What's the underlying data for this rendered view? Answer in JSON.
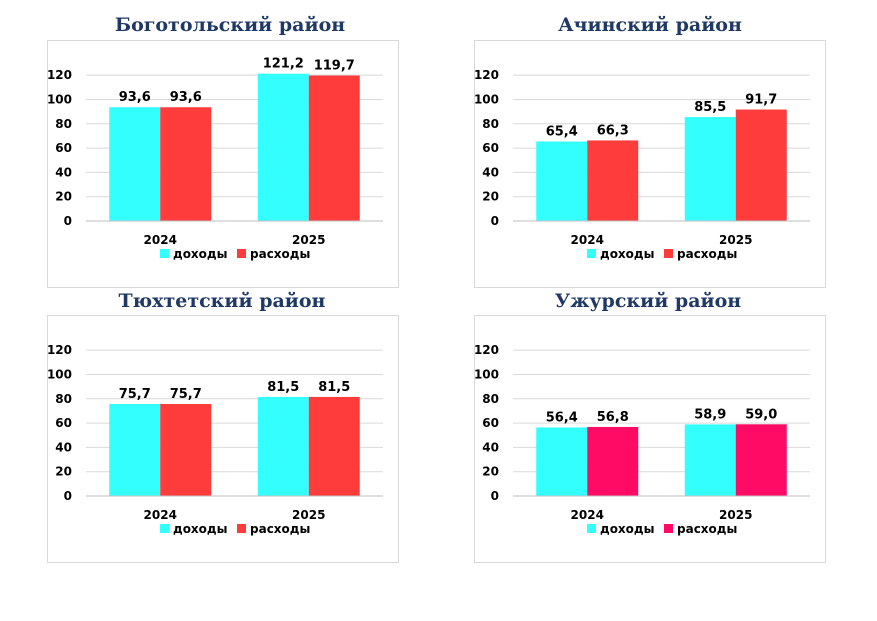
{
  "chart_data": [
    {
      "type": "bar",
      "title": "Боготольский район",
      "categories": [
        "2024",
        "2025"
      ],
      "series": [
        {
          "name": "доходы",
          "color": "#33ffff",
          "values": [
            93.6,
            121.2
          ],
          "labels": [
            "93,6",
            "121,2"
          ]
        },
        {
          "name": "расходы",
          "color": "#ff3c3c",
          "values": [
            93.6,
            119.7
          ],
          "labels": [
            "93,6",
            "119,7"
          ]
        }
      ],
      "yticks": [
        "0",
        "20",
        "40",
        "60",
        "80",
        "100",
        "120"
      ],
      "ylim": [
        0,
        130
      ],
      "grid": true,
      "legend": "bottom"
    },
    {
      "type": "bar",
      "title": "Ачинский район",
      "categories": [
        "2024",
        "2025"
      ],
      "series": [
        {
          "name": "доходы",
          "color": "#33ffff",
          "values": [
            65.4,
            85.5
          ],
          "labels": [
            "65,4",
            "85,5"
          ]
        },
        {
          "name": "расходы",
          "color": "#ff3c3c",
          "values": [
            66.3,
            91.7
          ],
          "labels": [
            "66,3",
            "91,7"
          ]
        }
      ],
      "yticks": [
        "0",
        "20",
        "40",
        "60",
        "80",
        "100",
        "120"
      ],
      "ylim": [
        0,
        130
      ],
      "grid": true,
      "legend": "bottom"
    },
    {
      "type": "bar",
      "title": "Тюхтетский район",
      "categories": [
        "2024",
        "2025"
      ],
      "series": [
        {
          "name": "доходы",
          "color": "#33ffff",
          "values": [
            75.7,
            81.5
          ],
          "labels": [
            "75,7",
            "81,5"
          ]
        },
        {
          "name": "расходы",
          "color": "#ff3c3c",
          "values": [
            75.7,
            81.5
          ],
          "labels": [
            "75,7",
            "81,5"
          ]
        }
      ],
      "yticks": [
        "0",
        "20",
        "40",
        "60",
        "80",
        "100",
        "120"
      ],
      "ylim": [
        0,
        130
      ],
      "grid": true,
      "legend": "bottom"
    },
    {
      "type": "bar",
      "title": "Ужурский район",
      "categories": [
        "2024",
        "2025"
      ],
      "series": [
        {
          "name": "доходы",
          "color": "#33ffff",
          "values": [
            56.4,
            58.9
          ],
          "labels": [
            "56,4",
            "58,9"
          ]
        },
        {
          "name": "расходы",
          "color": "#ff0a64",
          "values": [
            56.8,
            59.0
          ],
          "labels": [
            "56,8",
            "59,0"
          ]
        }
      ],
      "yticks": [
        "0",
        "20",
        "40",
        "60",
        "80",
        "100",
        "120"
      ],
      "ylim": [
        0,
        130
      ],
      "grid": true,
      "legend": "bottom"
    }
  ]
}
